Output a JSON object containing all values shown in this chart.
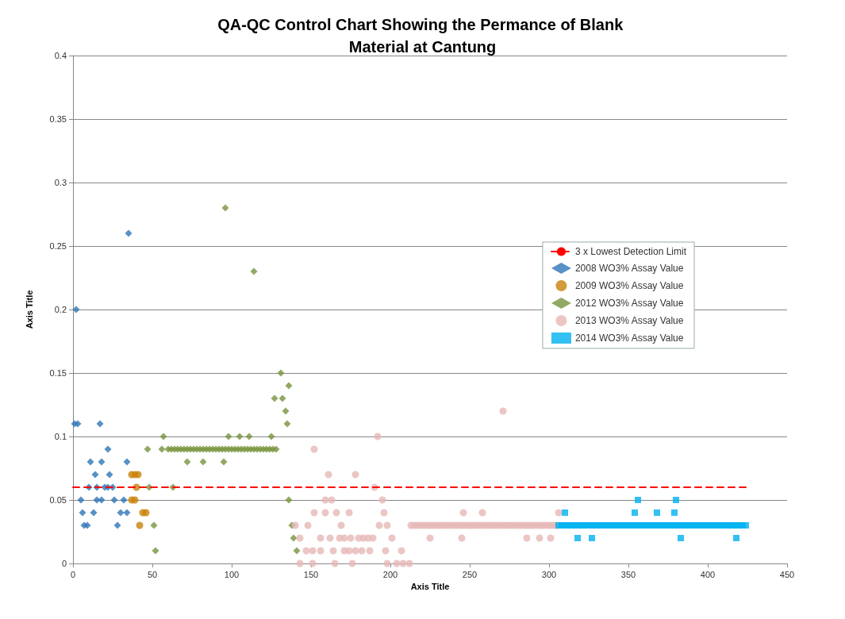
{
  "chart_data": {
    "type": "scatter",
    "title": "QA-QC Control Chart Showing the Permance of Blank Material at Cantung",
    "xlabel": "Axis Title",
    "ylabel": "Axis Title",
    "xlim": [
      0,
      450
    ],
    "xticks": [
      0,
      50,
      100,
      150,
      200,
      250,
      300,
      350,
      400,
      450
    ],
    "ylim": [
      0,
      0.4
    ],
    "yticks": [
      0,
      0.05,
      0.1,
      0.15,
      0.2,
      0.25,
      0.3,
      0.35,
      0.4
    ],
    "grid": "y",
    "legend": "right",
    "series": [
      {
        "name": "3 x Lowest Detection Limit",
        "type": "line",
        "line_style": "dashed",
        "marker": "none",
        "color": "#ff0000",
        "x": [
          0,
          424
        ],
        "values": [
          0.06,
          0.06
        ]
      },
      {
        "name": "2008 WO3% Assay Value",
        "marker": "diamond",
        "color": "#2e75b6",
        "x": [
          2,
          35,
          1,
          3,
          17,
          22,
          11,
          18,
          34,
          14,
          23,
          10,
          15,
          20,
          22,
          25,
          5,
          15,
          18,
          26,
          32,
          6,
          13,
          30,
          34,
          7,
          28,
          9
        ],
        "values": [
          0.2,
          0.26,
          0.11,
          0.11,
          0.11,
          0.09,
          0.08,
          0.08,
          0.08,
          0.07,
          0.07,
          0.06,
          0.06,
          0.06,
          0.06,
          0.06,
          0.05,
          0.05,
          0.05,
          0.05,
          0.05,
          0.04,
          0.04,
          0.04,
          0.04,
          0.03,
          0.03,
          0.03
        ]
      },
      {
        "name": "2009 WO3% Assay Value",
        "marker": "circle",
        "color": "#c8820a",
        "x": [
          37,
          39,
          41,
          40,
          37,
          39,
          44,
          46,
          42
        ],
        "values": [
          0.07,
          0.07,
          0.07,
          0.06,
          0.05,
          0.05,
          0.04,
          0.04,
          0.03
        ]
      },
      {
        "name": "2012 WO3% Assay Value",
        "marker": "diamond",
        "color": "#77933c",
        "x": [
          96,
          114,
          131,
          136,
          127,
          132,
          134,
          135,
          57,
          98,
          105,
          111,
          125,
          72,
          82,
          95,
          48,
          63,
          136,
          51,
          138,
          139,
          141,
          52,
          47,
          56,
          60,
          62,
          64,
          66,
          68,
          70,
          72,
          74,
          76,
          78,
          80,
          82,
          84,
          86,
          88,
          90,
          92,
          94,
          96,
          98,
          100,
          102,
          104,
          106,
          108,
          110,
          112,
          114,
          116,
          118,
          120,
          122,
          124,
          126,
          128
        ],
        "values": [
          0.28,
          0.23,
          0.15,
          0.14,
          0.13,
          0.13,
          0.12,
          0.11,
          0.1,
          0.1,
          0.1,
          0.1,
          0.1,
          0.08,
          0.08,
          0.08,
          0.06,
          0.06,
          0.05,
          0.03,
          0.03,
          0.02,
          0.01,
          0.01,
          0.09,
          0.09,
          0.09,
          0.09,
          0.09,
          0.09,
          0.09,
          0.09,
          0.09,
          0.09,
          0.09,
          0.09,
          0.09,
          0.09,
          0.09,
          0.09,
          0.09,
          0.09,
          0.09,
          0.09,
          0.09,
          0.09,
          0.09,
          0.09,
          0.09,
          0.09,
          0.09,
          0.09,
          0.09,
          0.09,
          0.09,
          0.09,
          0.09,
          0.09,
          0.09,
          0.09,
          0.09
        ]
      },
      {
        "name": "2013 WO3% Assay Value",
        "marker": "circle",
        "color": "#e6b8b7",
        "x": [
          271,
          192,
          152,
          161,
          178,
          190,
          159,
          163,
          195,
          152,
          159,
          166,
          174,
          196,
          246,
          258,
          306,
          140,
          148,
          169,
          193,
          198,
          143,
          156,
          162,
          168,
          171,
          175,
          180,
          183,
          186,
          189,
          201,
          225,
          245,
          286,
          294,
          301,
          147,
          151,
          156,
          164,
          171,
          174,
          178,
          182,
          187,
          197,
          207,
          143,
          151,
          165,
          176,
          198,
          204,
          208,
          212,
          213,
          215,
          217,
          219,
          221,
          223,
          225,
          227,
          229,
          231,
          233,
          235,
          237,
          239,
          241,
          243,
          245,
          247,
          249,
          251,
          253,
          255,
          257,
          259,
          261,
          263,
          265,
          267,
          269,
          271,
          273,
          275,
          277,
          279,
          281,
          283,
          285,
          287,
          289,
          291,
          293,
          295,
          297,
          299,
          301,
          303,
          305
        ],
        "values": [
          0.12,
          0.1,
          0.09,
          0.07,
          0.07,
          0.06,
          0.05,
          0.05,
          0.05,
          0.04,
          0.04,
          0.04,
          0.04,
          0.04,
          0.04,
          0.04,
          0.04,
          0.03,
          0.03,
          0.03,
          0.03,
          0.03,
          0.02,
          0.02,
          0.02,
          0.02,
          0.02,
          0.02,
          0.02,
          0.02,
          0.02,
          0.02,
          0.02,
          0.02,
          0.02,
          0.02,
          0.02,
          0.02,
          0.01,
          0.01,
          0.01,
          0.01,
          0.01,
          0.01,
          0.01,
          0.01,
          0.01,
          0.01,
          0.01,
          0,
          0,
          0,
          0,
          0,
          0,
          0,
          0,
          0.03,
          0.03,
          0.03,
          0.03,
          0.03,
          0.03,
          0.03,
          0.03,
          0.03,
          0.03,
          0.03,
          0.03,
          0.03,
          0.03,
          0.03,
          0.03,
          0.03,
          0.03,
          0.03,
          0.03,
          0.03,
          0.03,
          0.03,
          0.03,
          0.03,
          0.03,
          0.03,
          0.03,
          0.03,
          0.03,
          0.03,
          0.03,
          0.03,
          0.03,
          0.03,
          0.03,
          0.03,
          0.03,
          0.03,
          0.03,
          0.03,
          0.03,
          0.03,
          0.03,
          0.03,
          0.03,
          0.03
        ]
      },
      {
        "name": "2014 WO3% Assay Value",
        "marker": "square",
        "color": "#00b0f0",
        "x": [
          356,
          380,
          310,
          354,
          368,
          379,
          318,
          327,
          383,
          418,
          306,
          308,
          310,
          312,
          314,
          316,
          318,
          320,
          322,
          324,
          326,
          328,
          330,
          332,
          334,
          336,
          338,
          340,
          342,
          344,
          346,
          348,
          350,
          352,
          354,
          356,
          358,
          360,
          362,
          364,
          366,
          368,
          370,
          372,
          374,
          376,
          378,
          380,
          382,
          384,
          386,
          388,
          390,
          392,
          394,
          396,
          398,
          400,
          402,
          404,
          406,
          408,
          410,
          412,
          414,
          416,
          418,
          420,
          422,
          424
        ],
        "values": [
          0.05,
          0.05,
          0.04,
          0.04,
          0.04,
          0.04,
          0.02,
          0.02,
          0.02,
          0.02,
          0.03,
          0.03,
          0.03,
          0.03,
          0.03,
          0.03,
          0.03,
          0.03,
          0.03,
          0.03,
          0.03,
          0.03,
          0.03,
          0.03,
          0.03,
          0.03,
          0.03,
          0.03,
          0.03,
          0.03,
          0.03,
          0.03,
          0.03,
          0.03,
          0.03,
          0.03,
          0.03,
          0.03,
          0.03,
          0.03,
          0.03,
          0.03,
          0.03,
          0.03,
          0.03,
          0.03,
          0.03,
          0.03,
          0.03,
          0.03,
          0.03,
          0.03,
          0.03,
          0.03,
          0.03,
          0.03,
          0.03,
          0.03,
          0.03,
          0.03,
          0.03,
          0.03,
          0.03,
          0.03,
          0.03,
          0.03,
          0.03,
          0.03,
          0.03,
          0.03
        ]
      }
    ]
  }
}
